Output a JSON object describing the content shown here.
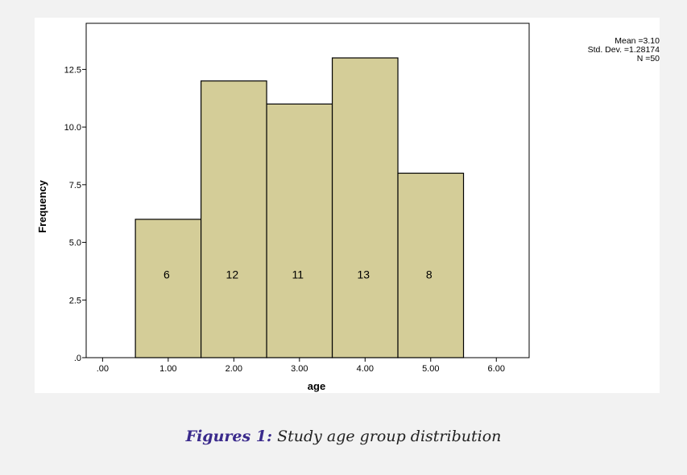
{
  "chart_data": {
    "type": "bar",
    "categories": [
      ".00",
      "1.00",
      "2.00",
      "3.00",
      "4.00",
      "5.00",
      "6.00"
    ],
    "bins": [
      {
        "x": 1,
        "value": 6,
        "label": "6"
      },
      {
        "x": 2,
        "value": 12,
        "label": "12"
      },
      {
        "x": 3,
        "value": 11,
        "label": "11"
      },
      {
        "x": 4,
        "value": 13,
        "label": "13"
      },
      {
        "x": 5,
        "value": 8,
        "label": "8"
      }
    ],
    "xlabel": "age",
    "ylabel": "Frequency",
    "xlim": [
      -0.25,
      6.5
    ],
    "ylim": [
      0,
      14.5
    ],
    "yticks": [
      {
        "value": 0,
        "label": ".0"
      },
      {
        "value": 2.5,
        "label": "2.5"
      },
      {
        "value": 5,
        "label": "5.0"
      },
      {
        "value": 7.5,
        "label": "7.5"
      },
      {
        "value": 10,
        "label": "10.0"
      },
      {
        "value": 12.5,
        "label": "12.5"
      }
    ],
    "stats": [
      "Mean =3.10",
      "Std. Dev. =1.28174",
      "N =50"
    ],
    "bar_color": "#d4cd98",
    "bar_edge_color": "#000000",
    "grid": false
  },
  "caption": {
    "prefix": "Figures 1:",
    "text": " Study age group distribution"
  }
}
